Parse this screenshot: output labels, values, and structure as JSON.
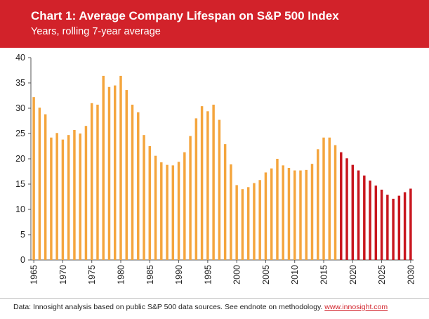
{
  "header": {
    "title": "Chart 1: Average Company Lifespan on S&P 500 Index",
    "subtitle": "Years, rolling 7-year average"
  },
  "footer": {
    "text": "Data: Innosight analysis based on public S&P 500 data sources. See endnote on methodology.",
    "link": "www.innosight.com"
  },
  "colors": {
    "header_bg": "#d2222a",
    "actual_bar": "#f4a53d",
    "forecast_bar": "#c8161e",
    "axis": "#555555"
  },
  "chart_data": {
    "type": "bar",
    "title": "Chart 1: Average Company Lifespan on S&P 500 Index",
    "subtitle": "Years, rolling 7-year average",
    "ylim": [
      0,
      40
    ],
    "yticks": [
      0,
      5,
      10,
      15,
      20,
      25,
      30,
      35,
      40
    ],
    "xticks": [
      1965,
      1970,
      1975,
      1980,
      1985,
      1990,
      1995,
      2000,
      2005,
      2010,
      2015,
      2020,
      2025,
      2030
    ],
    "grid": false,
    "series": [
      {
        "role": "actual",
        "color": "#f4a53d",
        "x": [
          1965,
          1966,
          1967,
          1968,
          1969,
          1970,
          1971,
          1972,
          1973,
          1974,
          1975,
          1976,
          1977,
          1978,
          1979,
          1980,
          1981,
          1982,
          1983,
          1984,
          1985,
          1986,
          1987,
          1988,
          1989,
          1990,
          1991,
          1992,
          1993,
          1994,
          1995,
          1996,
          1997,
          1998,
          1999,
          2000,
          2001,
          2002,
          2003,
          2004,
          2005,
          2006,
          2007,
          2008,
          2009,
          2010,
          2011,
          2012,
          2013,
          2014,
          2015,
          2016,
          2017
        ],
        "values": [
          32.2,
          30.1,
          28.8,
          24.2,
          25.1,
          23.8,
          24.7,
          25.7,
          25.0,
          26.5,
          31.0,
          30.7,
          36.4,
          34.2,
          34.5,
          36.4,
          33.6,
          30.7,
          29.2,
          24.7,
          22.5,
          20.6,
          19.3,
          18.8,
          18.7,
          19.4,
          21.3,
          24.5,
          28.0,
          30.4,
          29.4,
          30.7,
          27.7,
          22.9,
          18.9,
          14.8,
          14.0,
          14.4,
          15.2,
          15.8,
          17.3,
          18.1,
          20.0,
          18.7,
          18.2,
          17.7,
          17.7,
          17.8,
          19.0,
          21.9,
          24.2,
          24.2,
          22.7
        ]
      },
      {
        "role": "forecast",
        "color": "#c8161e",
        "x": [
          2018,
          2019,
          2020,
          2021,
          2022,
          2023,
          2024,
          2025,
          2026,
          2027,
          2028,
          2029,
          2030
        ],
        "values": [
          21.3,
          20.1,
          18.8,
          17.7,
          16.7,
          15.7,
          14.7,
          13.9,
          12.9,
          12.1,
          12.7,
          13.4,
          14.1
        ]
      }
    ]
  }
}
